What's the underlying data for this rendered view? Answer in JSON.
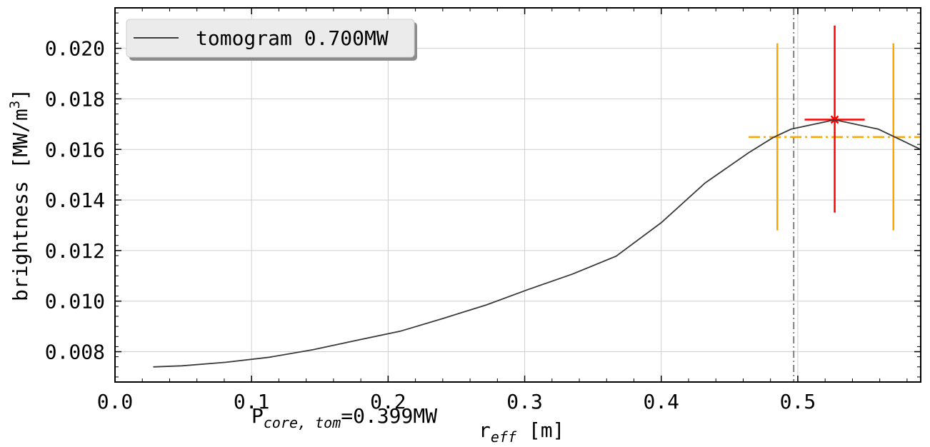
{
  "chart_data": {
    "type": "line",
    "xlabel": "r",
    "xlabel_sub": "eff",
    "xlabel_unit": " [m]",
    "ylabel": "brightness [MW/m",
    "ylabel_sup": "3",
    "ylabel_end": "]",
    "xlim": [
      0.0,
      0.59
    ],
    "ylim": [
      0.0068,
      0.0216
    ],
    "grid": true,
    "legend_position": "upper-left",
    "x_ticks": [
      0.0,
      0.1,
      0.2,
      0.3,
      0.4,
      0.5
    ],
    "x_tick_labels": [
      "0.0",
      "0.1",
      "0.2",
      "0.3",
      "0.4",
      "0.5"
    ],
    "y_ticks": [
      0.008,
      0.01,
      0.012,
      0.014,
      0.016,
      0.018,
      0.02
    ],
    "y_tick_labels": [
      "0.008",
      "0.010",
      "0.012",
      "0.014",
      "0.016",
      "0.018",
      "0.020"
    ],
    "series": [
      {
        "name": "tomogram 0.700MW",
        "color": "#3a3a3a",
        "x": [
          0.028,
          0.049,
          0.081,
          0.113,
          0.145,
          0.177,
          0.209,
          0.24,
          0.272,
          0.302,
          0.335,
          0.367,
          0.4,
          0.432,
          0.464,
          0.482,
          0.495,
          0.527,
          0.559,
          0.59
        ],
        "y": [
          0.0074,
          0.00744,
          0.00758,
          0.00778,
          0.00808,
          0.00845,
          0.00881,
          0.00931,
          0.00985,
          0.01045,
          0.01107,
          0.01178,
          0.0131,
          0.01467,
          0.01587,
          0.01647,
          0.0168,
          0.01717,
          0.0168,
          0.016
        ]
      }
    ],
    "annotations": {
      "vline": {
        "x": 0.497,
        "color": "#808080",
        "style": "dashdot"
      },
      "red_point": {
        "x": 0.527,
        "y": 0.01718,
        "xerr": [
          0.505,
          0.549
        ],
        "yerr": [
          0.0135,
          0.0209
        ],
        "color": "#ff0000"
      },
      "orange_hline": {
        "y": 0.01649,
        "x": [
          0.464,
          0.59
        ],
        "color": "#ffa500"
      },
      "orange_vlines": [
        {
          "x": 0.485,
          "y": [
            0.0128,
            0.0202
          ]
        },
        {
          "x": 0.57,
          "y": [
            0.0128,
            0.0202
          ]
        }
      ],
      "power_text": "P",
      "power_sub": "core, tom",
      "power_value": "=0.399MW"
    }
  }
}
